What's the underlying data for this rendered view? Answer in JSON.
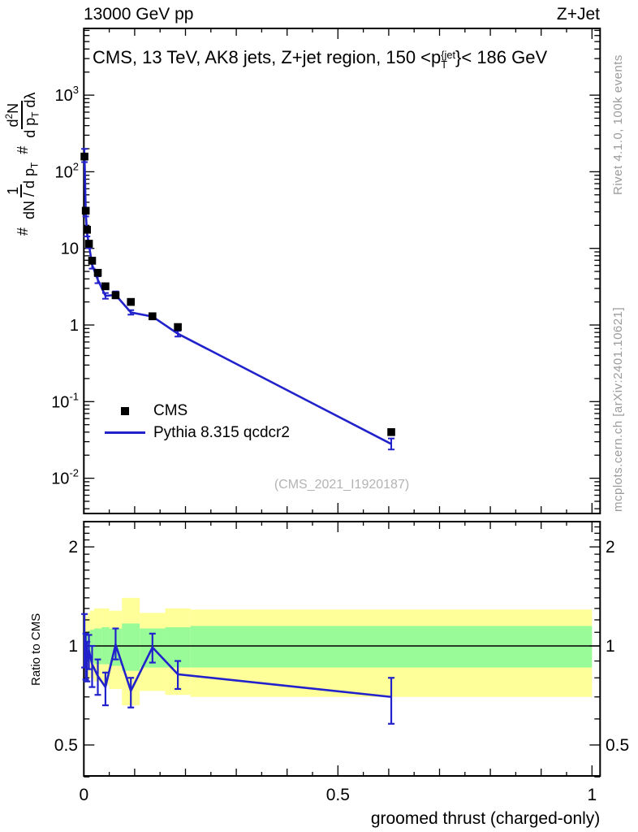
{
  "header": {
    "left": "13000 GeV pp",
    "right": "Z+Jet"
  },
  "title": {
    "prefix": "CMS, 13 TeV, AK8 jets, Z+jet region, 150 <p",
    "sup": "{jet",
    "sub": "T",
    "suffix": "}< 186 GeV"
  },
  "watermark": "(CMS_2021_I1920187)",
  "side_notes": {
    "top": "Rivet 4.1.0,  100k events",
    "bottom": "mcplots.cern.ch [arXiv:2401.10621]"
  },
  "ylabel_main": {
    "hash1": "#",
    "frac1_num": "1",
    "frac1_den_parts": {
      "pre": "dN / d p",
      "sub": "T"
    },
    "hash2": "#",
    "frac2_num_parts": {
      "pre": "d",
      "sup": "2",
      "post": "N"
    },
    "frac2_den_parts": {
      "pre": "d p",
      "sub": "T",
      "post": " dλ"
    }
  },
  "legend": [
    {
      "label": "CMS",
      "type": "marker",
      "color": "#000000"
    },
    {
      "label": "Pythia 8.315 qcdcr2",
      "type": "line",
      "color": "#2222cc"
    }
  ],
  "ratio_ylabel": "Ratio to CMS",
  "xaxis_label": "groomed thrust (charged-only)",
  "chart_data": {
    "type": "line",
    "title": "CMS, 13 TeV, AK8 jets, Z+jet region, 150 <pT^{jet}< 186 GeV",
    "xlabel": "groomed thrust (charged-only)",
    "ylabel": "# 1/(dN/dpT) # d2N/(dpT dlambda)",
    "legend_position": "middle-left",
    "grid": false,
    "xlim": [
      0,
      1.016
    ],
    "ylim_main": [
      0.0036,
      7400
    ],
    "ylim_ratio": [
      0.4,
      2.39
    ],
    "yscale": "log",
    "x": [
      0.00125,
      0.00375,
      0.00625,
      0.01,
      0.01625,
      0.0275,
      0.0425,
      0.0625,
      0.0925,
      0.135,
      0.185,
      0.605
    ],
    "bin_edges": [
      0,
      0.0025,
      0.005,
      0.0075,
      0.0125,
      0.02,
      0.035,
      0.05,
      0.075,
      0.11,
      0.16,
      0.21,
      1.0
    ],
    "series": [
      {
        "name": "CMS",
        "type": "scatter",
        "marker": "square",
        "color": "#000000",
        "values": [
          158,
          31,
          17.5,
          11.5,
          6.9,
          4.8,
          3.2,
          2.45,
          2.0,
          1.3,
          0.94,
          0.04
        ]
      },
      {
        "name": "Pythia 8.315 qcdcr2",
        "type": "line",
        "color": "#2222cc",
        "values": [
          163,
          29.5,
          15.9,
          11.2,
          6.1,
          3.9,
          2.4,
          2.47,
          1.46,
          1.29,
          0.77,
          0.028
        ],
        "yerr_rel": [
          0.22,
          0.13,
          0.11,
          0.11,
          0.12,
          0.11,
          0.09,
          0.11,
          0.07,
          0.09,
          0.09,
          0.18
        ]
      }
    ],
    "ratio": {
      "name": "Pythia / CMS",
      "ref_line": 1.0,
      "values": [
        1.03,
        0.95,
        0.91,
        0.97,
        0.88,
        0.81,
        0.75,
        1.01,
        0.73,
        0.99,
        0.82,
        0.7
      ],
      "err_up": [
        0.22,
        0.14,
        0.12,
        0.11,
        0.12,
        0.1,
        0.08,
        0.12,
        0.07,
        0.1,
        0.08,
        0.1
      ],
      "err_dn": [
        0.17,
        0.16,
        0.13,
        0.12,
        0.13,
        0.1,
        0.09,
        0.1,
        0.08,
        0.1,
        0.08,
        0.12
      ],
      "band_yellow": [
        [
          0.84,
          1.2
        ],
        [
          0.82,
          1.24
        ],
        [
          0.82,
          1.22
        ],
        [
          0.8,
          1.26
        ],
        [
          0.8,
          1.28
        ],
        [
          0.78,
          1.3
        ],
        [
          0.76,
          1.3
        ],
        [
          0.74,
          1.28
        ],
        [
          0.66,
          1.4
        ],
        [
          0.73,
          1.26
        ],
        [
          0.71,
          1.3
        ],
        [
          0.7,
          1.29
        ]
      ],
      "band_green": [
        [
          0.92,
          1.09
        ],
        [
          0.91,
          1.1
        ],
        [
          0.91,
          1.1
        ],
        [
          0.9,
          1.11
        ],
        [
          0.89,
          1.12
        ],
        [
          0.88,
          1.13
        ],
        [
          0.88,
          1.14
        ],
        [
          0.87,
          1.13
        ],
        [
          0.84,
          1.17
        ],
        [
          0.86,
          1.13
        ],
        [
          0.86,
          1.14
        ],
        [
          0.86,
          1.15
        ]
      ]
    },
    "yticks_main": [
      {
        "v": 1000,
        "base": "10",
        "exp": "3"
      },
      {
        "v": 100,
        "base": "10",
        "exp": "2"
      },
      {
        "v": 10,
        "base": "10",
        "exp": ""
      },
      {
        "v": 1,
        "base": "1",
        "exp": ""
      },
      {
        "v": 0.1,
        "base": "10",
        "exp": "-1"
      },
      {
        "v": 0.01,
        "base": "10",
        "exp": "-2"
      }
    ],
    "yticks_ratio": [
      {
        "v": 2,
        "label": "2"
      },
      {
        "v": 1,
        "label": "1"
      },
      {
        "v": 0.5,
        "label": "0.5"
      }
    ],
    "xticks": [
      {
        "v": 0,
        "label": "0"
      },
      {
        "v": 0.5,
        "label": "0.5"
      },
      {
        "v": 1,
        "label": "1"
      }
    ],
    "colors": {
      "band_yellow": "#ffff99",
      "band_green": "#99fb98",
      "mc_line": "#2222cc",
      "data_marker": "#000000"
    }
  }
}
